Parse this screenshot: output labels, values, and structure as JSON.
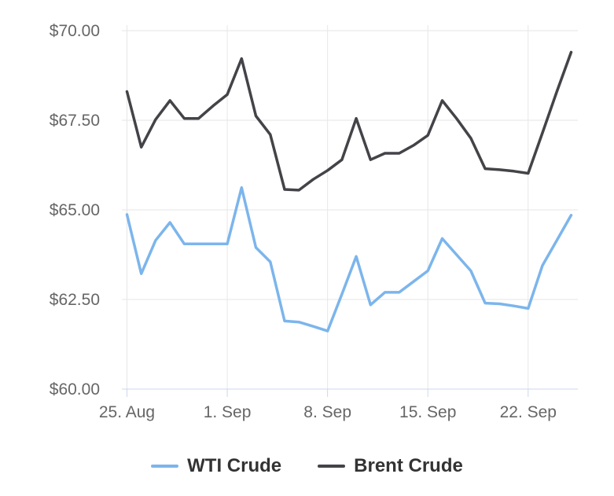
{
  "chart_data": {
    "type": "line",
    "title": "",
    "xlabel": "",
    "ylabel": "",
    "ylim": [
      60,
      70
    ],
    "grid": true,
    "legend_position": "bottom",
    "y_ticks": [
      {
        "value": 70.0,
        "label": "$70.00"
      },
      {
        "value": 67.5,
        "label": "$67.50"
      },
      {
        "value": 65.0,
        "label": "$65.00"
      },
      {
        "value": 62.5,
        "label": "$62.50"
      },
      {
        "value": 60.0,
        "label": "$60.00"
      }
    ],
    "x_ticks": [
      {
        "day_index": 0,
        "label": "25. Aug"
      },
      {
        "day_index": 7,
        "label": "1. Sep"
      },
      {
        "day_index": 14,
        "label": "8. Sep"
      },
      {
        "day_index": 21,
        "label": "15. Sep"
      },
      {
        "day_index": 28,
        "label": "22. Sep"
      }
    ],
    "x_dates": [
      "25 Aug",
      "26 Aug",
      "27 Aug",
      "28 Aug",
      "29 Aug",
      "30 Aug",
      "31 Aug",
      "1 Sep",
      "2 Sep",
      "3 Sep",
      "4 Sep",
      "5 Sep",
      "6 Sep",
      "7 Sep",
      "8 Sep",
      "9 Sep",
      "10 Sep",
      "11 Sep",
      "12 Sep",
      "13 Sep",
      "14 Sep",
      "15 Sep",
      "16 Sep",
      "17 Sep",
      "18 Sep",
      "19 Sep",
      "20 Sep",
      "21 Sep",
      "22 Sep",
      "23 Sep",
      "24 Sep",
      "25 Sep"
    ],
    "series": [
      {
        "name": "WTI Crude",
        "color": "#7cb5ec",
        "values": [
          64.87,
          63.22,
          64.15,
          64.65,
          64.05,
          64.05,
          64.05,
          64.05,
          65.62,
          63.95,
          63.55,
          61.9,
          61.87,
          61.75,
          61.62,
          62.65,
          63.7,
          62.35,
          62.7,
          62.7,
          63.0,
          63.3,
          64.2,
          63.75,
          63.3,
          62.4,
          62.38,
          62.32,
          62.25,
          63.45,
          64.15,
          64.85
        ]
      },
      {
        "name": "Brent Crude",
        "color": "#434348",
        "values": [
          68.3,
          66.75,
          67.52,
          68.05,
          67.55,
          67.55,
          67.9,
          68.22,
          69.22,
          67.62,
          67.1,
          65.57,
          65.55,
          65.85,
          66.1,
          66.4,
          67.55,
          66.4,
          66.58,
          66.58,
          66.8,
          67.08,
          68.05,
          67.55,
          67.0,
          66.15,
          66.12,
          66.08,
          66.02,
          67.15,
          68.3,
          69.4
        ]
      }
    ]
  },
  "colors": {
    "background": "#ffffff",
    "grid": "#e6e6e6",
    "axis_line": "#ccd6eb",
    "tick_mark": "#ccd6eb",
    "axis_label": "#666666",
    "legend_text": "#333333"
  }
}
